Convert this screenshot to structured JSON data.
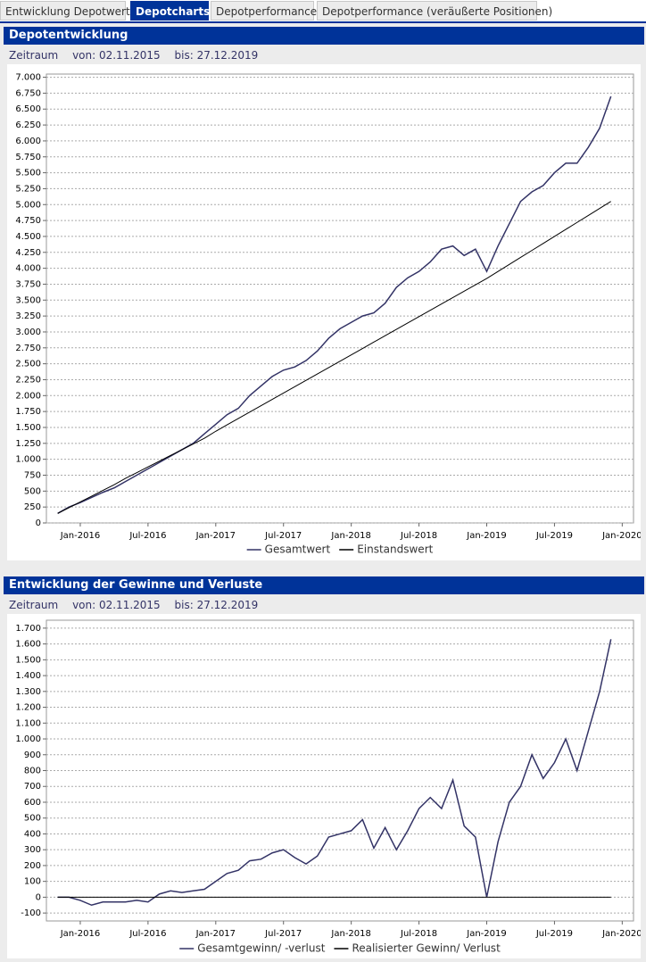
{
  "tabs": [
    "Entwicklung Depotwerte",
    "Depotcharts",
    "Depotperformance",
    "Depotperformance (veräußerte Positionen)"
  ],
  "chart_data": [
    {
      "type": "line",
      "title": "Depotentwicklung",
      "period": {
        "label": "Zeitraum",
        "from": "von: 02.11.2015",
        "to": "bis: 27.12.2019"
      },
      "x": [
        "2015-11",
        "2015-12",
        "2016-01",
        "2016-02",
        "2016-03",
        "2016-04",
        "2016-05",
        "2016-06",
        "2016-07",
        "2016-08",
        "2016-09",
        "2016-10",
        "2016-11",
        "2016-12",
        "2017-01",
        "2017-02",
        "2017-03",
        "2017-04",
        "2017-05",
        "2017-06",
        "2017-07",
        "2017-08",
        "2017-09",
        "2017-10",
        "2017-11",
        "2017-12",
        "2018-01",
        "2018-02",
        "2018-03",
        "2018-04",
        "2018-05",
        "2018-06",
        "2018-07",
        "2018-08",
        "2018-09",
        "2018-10",
        "2018-11",
        "2018-12",
        "2019-01",
        "2019-02",
        "2019-03",
        "2019-04",
        "2019-05",
        "2019-06",
        "2019-07",
        "2019-08",
        "2019-09",
        "2019-10",
        "2019-11",
        "2019-12"
      ],
      "series": [
        {
          "name": "Gesamtwert",
          "color": "#333366",
          "values": [
            150,
            250,
            320,
            400,
            480,
            550,
            650,
            750,
            850,
            950,
            1050,
            1150,
            1250,
            1400,
            1550,
            1700,
            1800,
            2000,
            2150,
            2300,
            2400,
            2450,
            2550,
            2700,
            2900,
            3050,
            3150,
            3250,
            3300,
            3450,
            3700,
            3850,
            3950,
            4100,
            4300,
            4350,
            4200,
            4300,
            3950,
            4350,
            4700,
            5050,
            5200,
            5300,
            5500,
            5650,
            5650,
            5900,
            6200,
            6700
          ]
        },
        {
          "name": "Einstandswert",
          "color": "#000000",
          "values": [
            150,
            240,
            330,
            420,
            510,
            600,
            700,
            790,
            880,
            970,
            1060,
            1150,
            1240,
            1330,
            1440,
            1540,
            1640,
            1740,
            1840,
            1940,
            2040,
            2140,
            2240,
            2340,
            2440,
            2540,
            2640,
            2740,
            2840,
            2940,
            3040,
            3140,
            3240,
            3340,
            3440,
            3540,
            3640,
            3740,
            3840,
            3950,
            4060,
            4170,
            4280,
            4390,
            4500,
            4610,
            4720,
            4830,
            4940,
            5050
          ]
        }
      ],
      "xlim": [
        "2015-10",
        "2020-02"
      ],
      "xticks": [
        {
          "value": "2016-01",
          "label": "Jan-2016"
        },
        {
          "value": "2016-07",
          "label": "Jul-2016"
        },
        {
          "value": "2017-01",
          "label": "Jan-2017"
        },
        {
          "value": "2017-07",
          "label": "Jul-2017"
        },
        {
          "value": "2018-01",
          "label": "Jan-2018"
        },
        {
          "value": "2018-07",
          "label": "Jul-2018"
        },
        {
          "value": "2019-01",
          "label": "Jan-2019"
        },
        {
          "value": "2019-07",
          "label": "Jul-2019"
        },
        {
          "value": "2020-01",
          "label": "Jan-2020"
        }
      ],
      "ylim": [
        0,
        7050
      ],
      "yticks": [
        0,
        250,
        500,
        750,
        {
          "value": 1000,
          "label": "1.000"
        },
        {
          "value": 1250,
          "label": "1.250"
        },
        {
          "value": 1500,
          "label": "1.500"
        },
        {
          "value": 1750,
          "label": "1.750"
        },
        {
          "value": 2000,
          "label": "2.000"
        },
        {
          "value": 2250,
          "label": "2.250"
        },
        {
          "value": 2500,
          "label": "2.500"
        },
        {
          "value": 2750,
          "label": "2.750"
        },
        {
          "value": 3000,
          "label": "3.000"
        },
        {
          "value": 3250,
          "label": "3.250"
        },
        {
          "value": 3500,
          "label": "3.500"
        },
        {
          "value": 3750,
          "label": "3.750"
        },
        {
          "value": 4000,
          "label": "4.000"
        },
        {
          "value": 4250,
          "label": "4.250"
        },
        {
          "value": 4500,
          "label": "4.500"
        },
        {
          "value": 4750,
          "label": "4.750"
        },
        {
          "value": 5000,
          "label": "5.000"
        },
        {
          "value": 5250,
          "label": "5.250"
        },
        {
          "value": 5500,
          "label": "5.500"
        },
        {
          "value": 5750,
          "label": "5.750"
        },
        {
          "value": 6000,
          "label": "6.000"
        },
        {
          "value": 6250,
          "label": "6.250"
        },
        {
          "value": 6500,
          "label": "6.500"
        },
        {
          "value": 6750,
          "label": "6.750"
        },
        {
          "value": 7000,
          "label": "7.000"
        }
      ],
      "grid": true,
      "legend": "bottom"
    },
    {
      "type": "line",
      "title": "Entwicklung der Gewinne und Verluste",
      "period": {
        "label": "Zeitraum",
        "from": "von: 02.11.2015",
        "to": "bis: 27.12.2019"
      },
      "x": [
        "2015-11",
        "2015-12",
        "2016-01",
        "2016-02",
        "2016-03",
        "2016-04",
        "2016-05",
        "2016-06",
        "2016-07",
        "2016-08",
        "2016-09",
        "2016-10",
        "2016-11",
        "2016-12",
        "2017-01",
        "2017-02",
        "2017-03",
        "2017-04",
        "2017-05",
        "2017-06",
        "2017-07",
        "2017-08",
        "2017-09",
        "2017-10",
        "2017-11",
        "2017-12",
        "2018-01",
        "2018-02",
        "2018-03",
        "2018-04",
        "2018-05",
        "2018-06",
        "2018-07",
        "2018-08",
        "2018-09",
        "2018-10",
        "2018-11",
        "2018-12",
        "2019-01",
        "2019-02",
        "2019-03",
        "2019-04",
        "2019-05",
        "2019-06",
        "2019-07",
        "2019-08",
        "2019-09",
        "2019-10",
        "2019-11",
        "2019-12"
      ],
      "series": [
        {
          "name": "Gesamtgewinn/ -verlust",
          "color": "#333366",
          "values": [
            0,
            0,
            -20,
            -50,
            -30,
            -30,
            -30,
            -20,
            -30,
            20,
            40,
            30,
            40,
            50,
            100,
            150,
            170,
            230,
            240,
            280,
            300,
            250,
            210,
            260,
            380,
            400,
            420,
            490,
            310,
            440,
            300,
            420,
            560,
            630,
            560,
            740,
            450,
            380,
            0,
            350,
            600,
            700,
            900,
            750,
            850,
            1000,
            800,
            1050,
            1300,
            1630
          ]
        },
        {
          "name": "Realisierter Gewinn/ Verlust",
          "color": "#000000",
          "values": [
            0,
            0,
            0,
            0,
            0,
            0,
            0,
            0,
            0,
            0,
            0,
            0,
            0,
            0,
            0,
            0,
            0,
            0,
            0,
            0,
            0,
            0,
            0,
            0,
            0,
            0,
            0,
            0,
            0,
            0,
            0,
            0,
            0,
            0,
            0,
            0,
            0,
            0,
            0,
            0,
            0,
            0,
            0,
            0,
            0,
            0,
            0,
            0,
            0,
            0
          ]
        }
      ],
      "xlim": [
        "2015-10",
        "2020-02"
      ],
      "xticks": [
        {
          "value": "2016-01",
          "label": "Jan-2016"
        },
        {
          "value": "2016-07",
          "label": "Jul-2016"
        },
        {
          "value": "2017-01",
          "label": "Jan-2017"
        },
        {
          "value": "2017-07",
          "label": "Jul-2017"
        },
        {
          "value": "2018-01",
          "label": "Jan-2018"
        },
        {
          "value": "2018-07",
          "label": "Jul-2018"
        },
        {
          "value": "2019-01",
          "label": "Jan-2019"
        },
        {
          "value": "2019-07",
          "label": "Jul-2019"
        },
        {
          "value": "2020-01",
          "label": "Jan-2020"
        }
      ],
      "ylim": [
        -150,
        1750
      ],
      "yticks": [
        -100,
        0,
        100,
        200,
        300,
        400,
        500,
        600,
        700,
        800,
        900,
        {
          "value": 1000,
          "label": "1.000"
        },
        {
          "value": 1100,
          "label": "1.100"
        },
        {
          "value": 1200,
          "label": "1.200"
        },
        {
          "value": 1300,
          "label": "1.300"
        },
        {
          "value": 1400,
          "label": "1.400"
        },
        {
          "value": 1500,
          "label": "1.500"
        },
        {
          "value": 1600,
          "label": "1.600"
        },
        {
          "value": 1700,
          "label": "1.700"
        }
      ],
      "grid": true,
      "legend": "bottom"
    }
  ]
}
